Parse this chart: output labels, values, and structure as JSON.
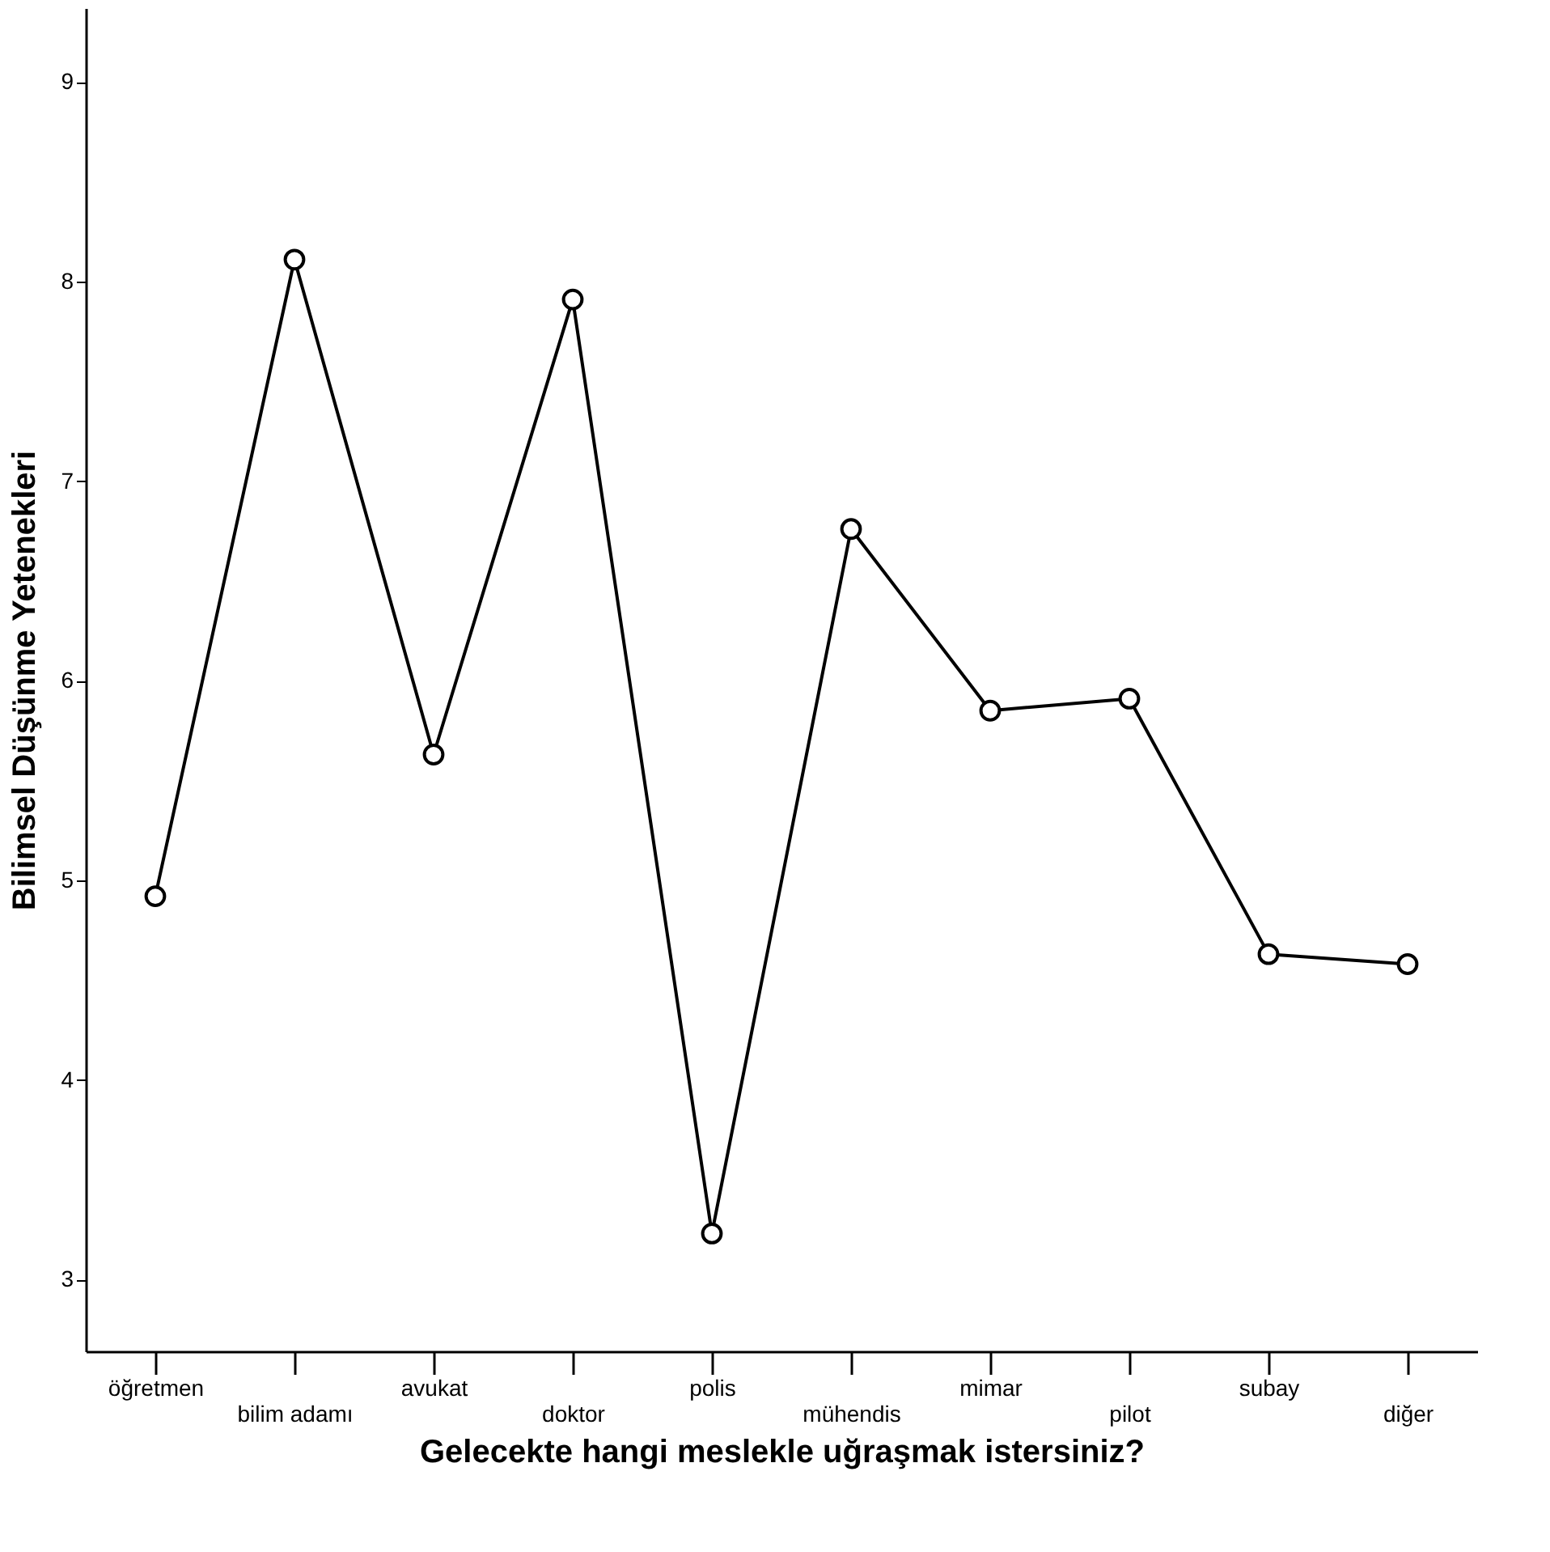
{
  "chart_data": {
    "type": "line",
    "xlabel": "Gelecekte hangi meslekle uğraşmak istersiniz?",
    "ylabel": "Bilimsel Düşünme Yetenekleri",
    "categories": [
      "öğretmen",
      "bilim adamı",
      "avukat",
      "doktor",
      "polis",
      "mühendis",
      "mimar",
      "pilot",
      "subay",
      "diğer"
    ],
    "series": [
      {
        "color": "#000000",
        "values": [
          4.92,
          8.11,
          5.63,
          7.91,
          3.23,
          6.76,
          5.85,
          5.91,
          4.63,
          4.58
        ]
      }
    ],
    "ylim": [
      2.64,
      9.37
    ],
    "yticks": [
      3,
      4,
      5,
      6,
      7,
      8,
      9
    ],
    "grid": false,
    "marker": "circle",
    "line_style": "solid"
  }
}
